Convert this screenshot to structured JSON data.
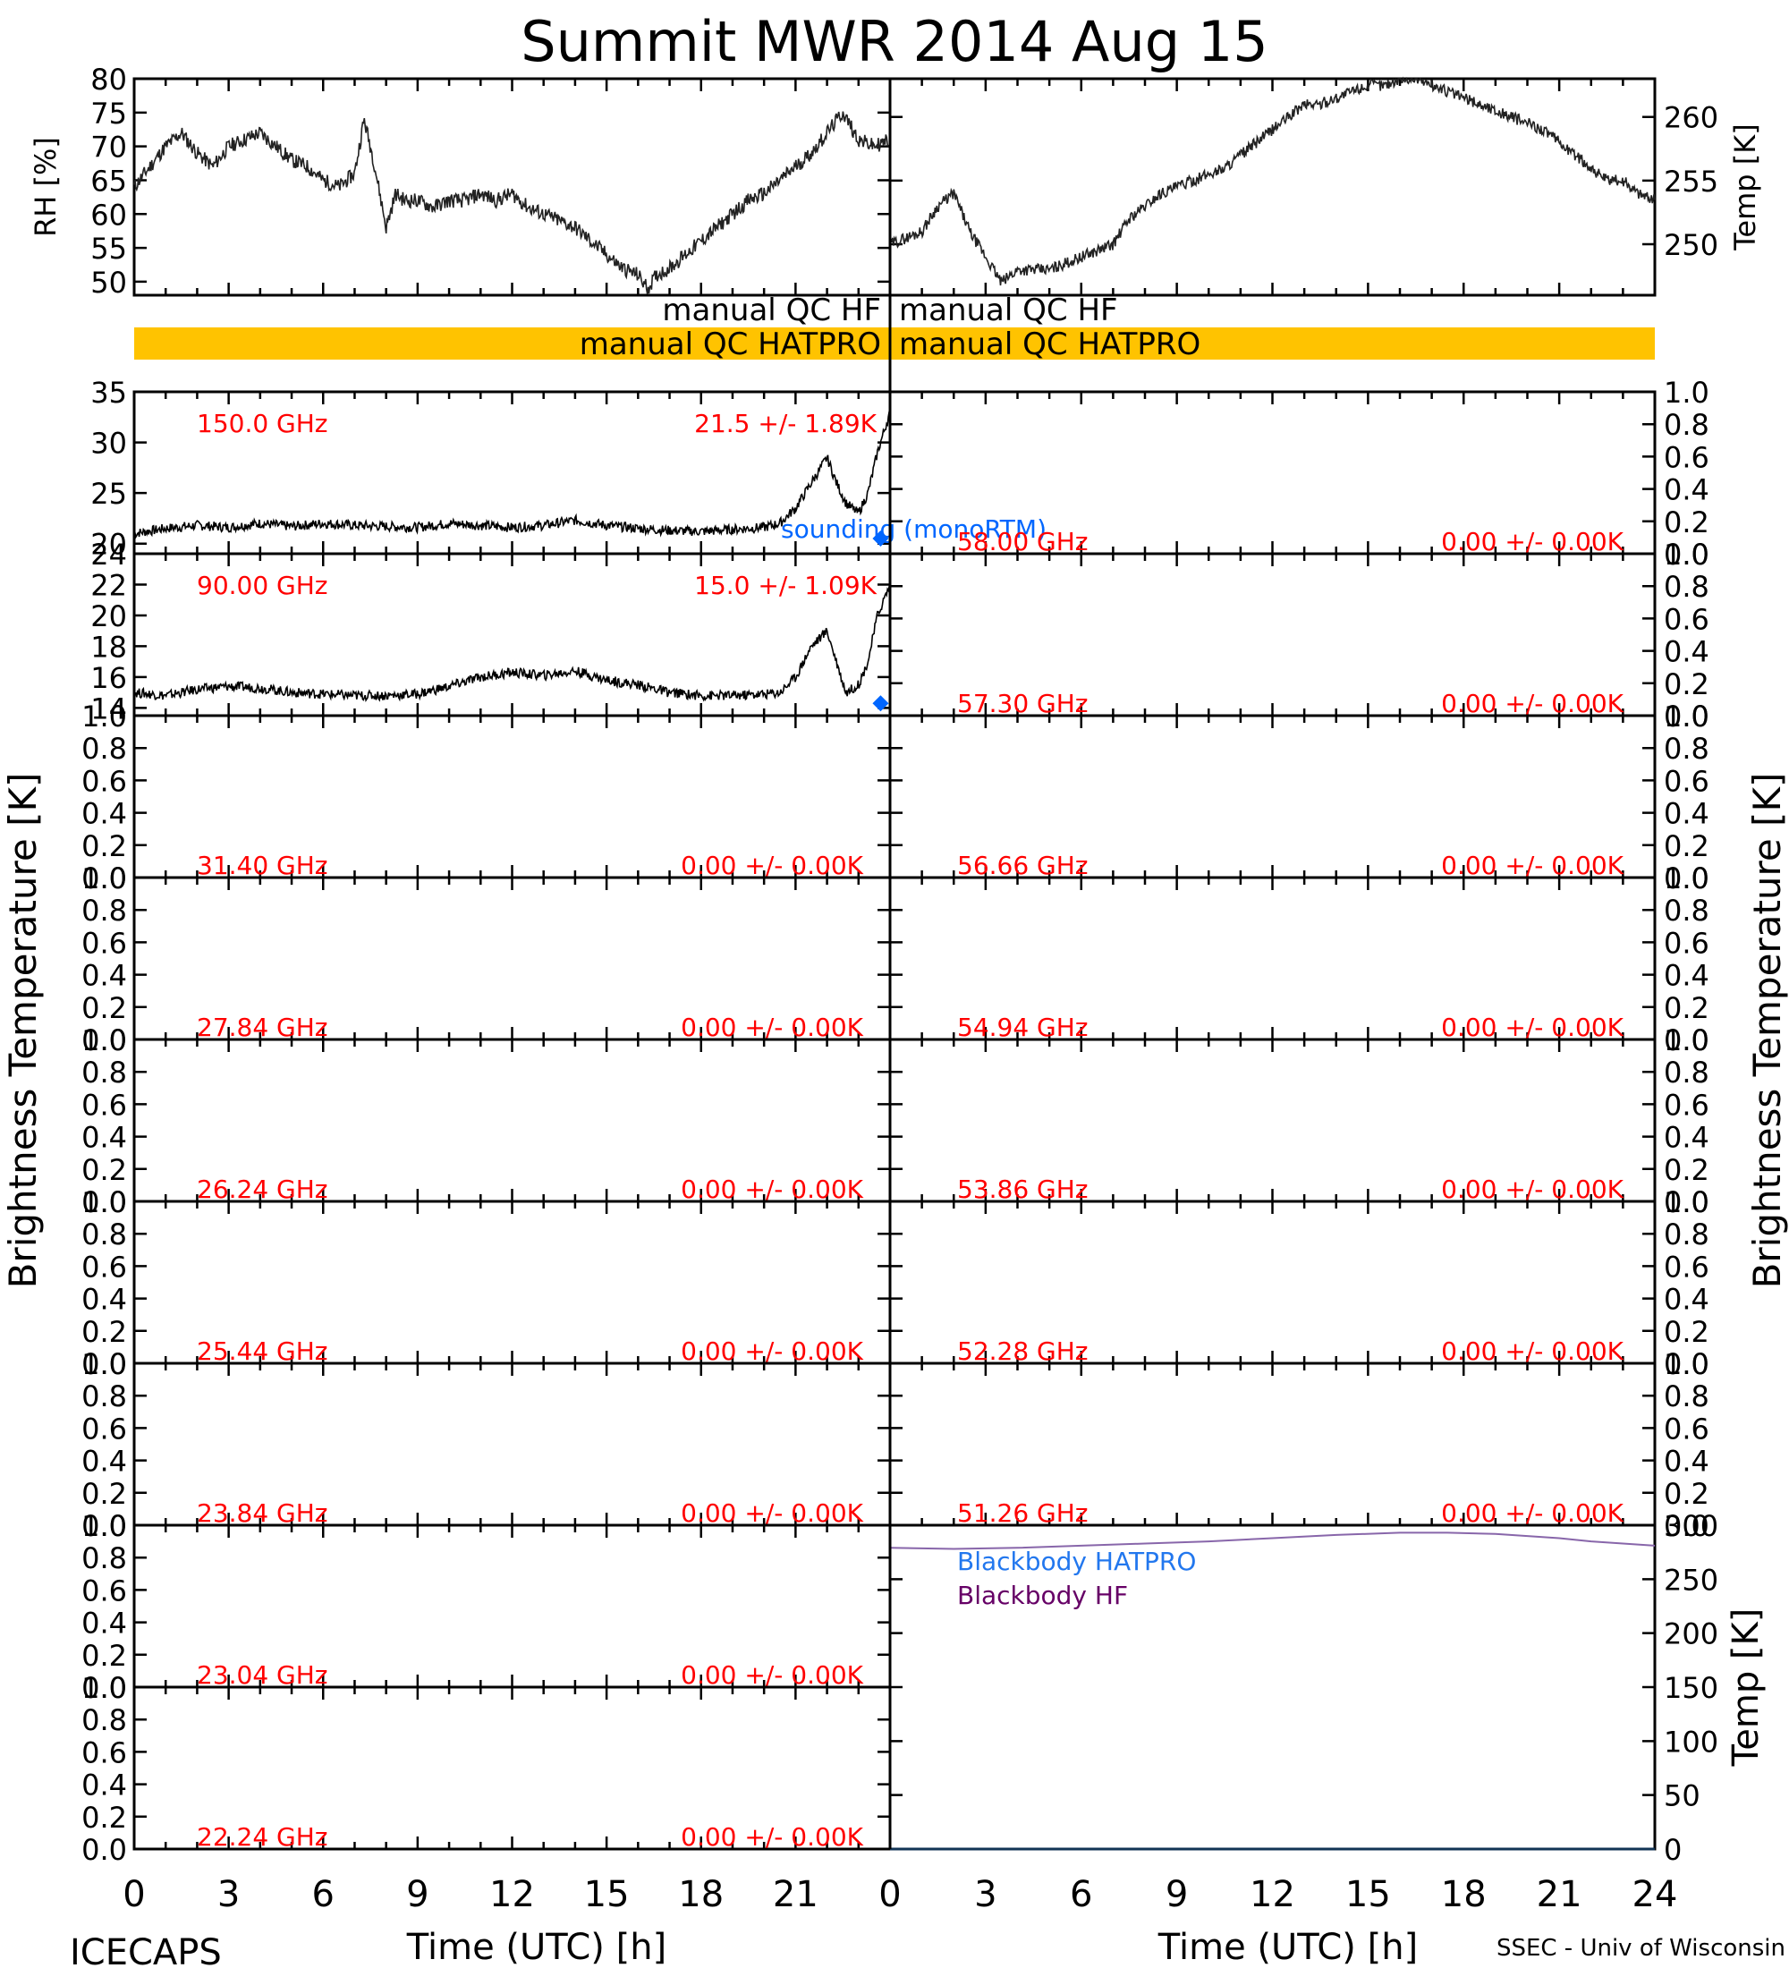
{
  "title": "Summit MWR 2014 Aug 15",
  "footer": {
    "left": "ICECAPS",
    "right": "SSEC - Univ of Wisconsin"
  },
  "left_axis_label": "Brightness Temperature [K]",
  "right_axis_label": "Brightness Temperature [K]",
  "xlabel": "Time (UTC) [h]",
  "xticks": [
    "0",
    "3",
    "6",
    "9",
    "12",
    "15",
    "18",
    "21",
    "24"
  ],
  "colors": {
    "qc_bar": "#ffc300",
    "label_red": "#ff0000",
    "sounding_blue": "#0066ff",
    "hatpro_blue": "#2277ee",
    "hf_purple": "#660066",
    "bb_line": "#8866aa"
  },
  "qc": {
    "hf": "manual  QC HF",
    "hatpro": "manual  QC HATPRO"
  },
  "chart_data": [
    {
      "type": "line",
      "panel": "rh",
      "ylabel": "RH [%]",
      "ylim": [
        48,
        80
      ],
      "yticks": [
        "50",
        "55",
        "60",
        "65",
        "70",
        "75",
        "80"
      ],
      "x": [
        0,
        0.5,
        1,
        1.5,
        2,
        2.5,
        3,
        3.5,
        4,
        4.5,
        5,
        5.5,
        6,
        6.5,
        7,
        7.3,
        7.6,
        8,
        8.3,
        8.6,
        9,
        9.5,
        10,
        10.5,
        11,
        11.5,
        12,
        12.5,
        13,
        13.5,
        14,
        14.5,
        15,
        15.5,
        16,
        16.3,
        16.6,
        17,
        17.5,
        18,
        18.5,
        19,
        19.5,
        20,
        20.5,
        21,
        21.5,
        22,
        22.5,
        23,
        23.5,
        24
      ],
      "series": [
        {
          "values": [
            64,
            67,
            70,
            72,
            69,
            67,
            70,
            71,
            72,
            70,
            68,
            67,
            65,
            64,
            66,
            74,
            68,
            58,
            63,
            62,
            62,
            61,
            62,
            62,
            63,
            62,
            63,
            61,
            60,
            59,
            58,
            56,
            54,
            52,
            51,
            49,
            51,
            52,
            54,
            56,
            58,
            60,
            62,
            63,
            65,
            67,
            69,
            72,
            75,
            71,
            70,
            71
          ]
        }
      ]
    },
    {
      "type": "line",
      "panel": "temp",
      "ylabel": "Temp [K]",
      "ylim": [
        246,
        263
      ],
      "yticks": [
        "250",
        "255",
        "260"
      ],
      "x": [
        0,
        0.5,
        1,
        1.5,
        2,
        2.5,
        3,
        3.5,
        4,
        4.5,
        5,
        5.5,
        6,
        6.5,
        7,
        7.5,
        8,
        8.5,
        9,
        9.5,
        10,
        10.5,
        11,
        11.5,
        12,
        12.5,
        13,
        13.5,
        14,
        14.5,
        15,
        15.5,
        16,
        16.5,
        17,
        17.5,
        18,
        18.5,
        19,
        19.5,
        20,
        20.5,
        21,
        21.5,
        22,
        22.5,
        23,
        23.5,
        24
      ],
      "series": [
        {
          "values": [
            250,
            250.5,
            251,
            253,
            254,
            251,
            249,
            247,
            248,
            248,
            248,
            248.5,
            249,
            249.5,
            250,
            252,
            253,
            254,
            254.5,
            255,
            255.5,
            256,
            257,
            258,
            259,
            260,
            261,
            261,
            261.5,
            262,
            262.5,
            262.5,
            263,
            263,
            262.5,
            262,
            261.5,
            261,
            260.5,
            260,
            259.5,
            259,
            258,
            257,
            256,
            255,
            255,
            254,
            253.5
          ]
        }
      ]
    },
    {
      "type": "line",
      "panel": "150.0 GHz",
      "side": "left",
      "channel_label": "150.0 GHz",
      "stat_label": "21.5 +/-  1.89K",
      "ylim": [
        19,
        35
      ],
      "yticks": [
        "20",
        "25",
        "30",
        "35"
      ],
      "annotation": "sounding (monoRTM)",
      "sounding_point": {
        "x": 23.7,
        "y": 20.5
      },
      "x": [
        0,
        1,
        2,
        3,
        4,
        5,
        6,
        7,
        8,
        9,
        10,
        11,
        12,
        13,
        14,
        15,
        16,
        17,
        18,
        19,
        20,
        20.5,
        21,
        21.5,
        22,
        22.3,
        22.6,
        23,
        23.3,
        23.6,
        24
      ],
      "series": [
        {
          "values": [
            21,
            21.5,
            21.8,
            21.6,
            22,
            21.7,
            22,
            21.8,
            21.7,
            21.6,
            22,
            21.8,
            21.6,
            21.8,
            22.3,
            21.8,
            21.5,
            21.3,
            21.2,
            21.4,
            21.6,
            22,
            23.5,
            26,
            28.5,
            26,
            24,
            23,
            25,
            29,
            33
          ]
        }
      ]
    },
    {
      "type": "line",
      "panel": "90.00 GHz",
      "side": "left",
      "channel_label": "90.00 GHz",
      "stat_label": "15.0 +/-  1.09K",
      "ylim": [
        13.5,
        24
      ],
      "yticks": [
        "14",
        "16",
        "18",
        "20",
        "22",
        "24"
      ],
      "sounding_point": {
        "x": 23.7,
        "y": 14.3
      },
      "x": [
        0,
        1,
        2,
        3,
        4,
        5,
        6,
        7,
        8,
        9,
        10,
        11,
        12,
        13,
        14,
        15,
        16,
        17,
        18,
        19,
        20,
        20.5,
        21,
        21.5,
        22,
        22.3,
        22.6,
        23,
        23.3,
        23.6,
        24
      ],
      "series": [
        {
          "values": [
            15,
            14.8,
            15.2,
            15.4,
            15.3,
            15,
            14.9,
            14.8,
            14.8,
            14.9,
            15.4,
            16,
            16.3,
            16.1,
            16.4,
            15.8,
            15.5,
            15,
            14.8,
            14.8,
            14.9,
            15,
            16,
            18,
            19,
            17,
            15,
            15.5,
            17,
            20,
            22
          ]
        }
      ]
    },
    {
      "type": "line",
      "panel": "31.40 GHz",
      "side": "left",
      "channel_label": "31.40 GHz",
      "stat_label": "0.00 +/-  0.00K",
      "ylim": [
        0,
        1
      ],
      "yticks": [
        "0.0",
        "0.2",
        "0.4",
        "0.6",
        "0.8",
        "1.0"
      ],
      "series": []
    },
    {
      "type": "line",
      "panel": "27.84 GHz",
      "side": "left",
      "channel_label": "27.84 GHz",
      "stat_label": "0.00 +/-  0.00K",
      "ylim": [
        0,
        1
      ],
      "yticks": [
        "0.0",
        "0.2",
        "0.4",
        "0.6",
        "0.8",
        "1.0"
      ],
      "series": []
    },
    {
      "type": "line",
      "panel": "26.24 GHz",
      "side": "left",
      "channel_label": "26.24 GHz",
      "stat_label": "0.00 +/-  0.00K",
      "ylim": [
        0,
        1
      ],
      "yticks": [
        "0.0",
        "0.2",
        "0.4",
        "0.6",
        "0.8",
        "1.0"
      ],
      "series": []
    },
    {
      "type": "line",
      "panel": "25.44 GHz",
      "side": "left",
      "channel_label": "25.44 GHz",
      "stat_label": "0.00 +/-  0.00K",
      "ylim": [
        0,
        1
      ],
      "yticks": [
        "0.0",
        "0.2",
        "0.4",
        "0.6",
        "0.8",
        "1.0"
      ],
      "series": []
    },
    {
      "type": "line",
      "panel": "23.84 GHz",
      "side": "left",
      "channel_label": "23.84 GHz",
      "stat_label": "0.00 +/-  0.00K",
      "ylim": [
        0,
        1
      ],
      "yticks": [
        "0.0",
        "0.2",
        "0.4",
        "0.6",
        "0.8",
        "1.0"
      ],
      "series": []
    },
    {
      "type": "line",
      "panel": "23.04 GHz",
      "side": "left",
      "channel_label": "23.04 GHz",
      "stat_label": "0.00 +/-  0.00K",
      "ylim": [
        0,
        1
      ],
      "yticks": [
        "0.0",
        "0.2",
        "0.4",
        "0.6",
        "0.8",
        "1.0"
      ],
      "series": []
    },
    {
      "type": "line",
      "panel": "22.24 GHz",
      "side": "left",
      "channel_label": "22.24 GHz",
      "stat_label": "0.00 +/-  0.00K",
      "ylim": [
        0,
        1
      ],
      "yticks": [
        "0.0",
        "0.2",
        "0.4",
        "0.6",
        "0.8",
        "1.0"
      ],
      "series": []
    },
    {
      "type": "line",
      "panel": "58.00 GHz",
      "side": "right",
      "channel_label": "58.00 GHz",
      "stat_label": "0.00 +/-  0.00K",
      "ylim": [
        0,
        1
      ],
      "yticks": [
        "0.0",
        "0.2",
        "0.4",
        "0.6",
        "0.8",
        "1.0"
      ],
      "series": []
    },
    {
      "type": "line",
      "panel": "57.30 GHz",
      "side": "right",
      "channel_label": "57.30 GHz",
      "stat_label": "0.00 +/-  0.00K",
      "ylim": [
        0,
        1
      ],
      "yticks": [
        "0.0",
        "0.2",
        "0.4",
        "0.6",
        "0.8",
        "1.0"
      ],
      "series": []
    },
    {
      "type": "line",
      "panel": "56.66 GHz",
      "side": "right",
      "channel_label": "56.66 GHz",
      "stat_label": "0.00 +/-  0.00K",
      "ylim": [
        0,
        1
      ],
      "yticks": [
        "0.0",
        "0.2",
        "0.4",
        "0.6",
        "0.8",
        "1.0"
      ],
      "series": []
    },
    {
      "type": "line",
      "panel": "54.94 GHz",
      "side": "right",
      "channel_label": "54.94 GHz",
      "stat_label": "0.00 +/-  0.00K",
      "ylim": [
        0,
        1
      ],
      "yticks": [
        "0.0",
        "0.2",
        "0.4",
        "0.6",
        "0.8",
        "1.0"
      ],
      "series": []
    },
    {
      "type": "line",
      "panel": "53.86 GHz",
      "side": "right",
      "channel_label": "53.86 GHz",
      "stat_label": "0.00 +/-  0.00K",
      "ylim": [
        0,
        1
      ],
      "yticks": [
        "0.0",
        "0.2",
        "0.4",
        "0.6",
        "0.8",
        "1.0"
      ],
      "series": []
    },
    {
      "type": "line",
      "panel": "52.28 GHz",
      "side": "right",
      "channel_label": "52.28 GHz",
      "stat_label": "0.00 +/-  0.00K",
      "ylim": [
        0,
        1
      ],
      "yticks": [
        "0.0",
        "0.2",
        "0.4",
        "0.6",
        "0.8",
        "1.0"
      ],
      "series": []
    },
    {
      "type": "line",
      "panel": "51.26 GHz",
      "side": "right",
      "channel_label": "51.26 GHz",
      "stat_label": "0.00 +/-  0.00K",
      "ylim": [
        0,
        1
      ],
      "yticks": [
        "0.0",
        "0.2",
        "0.4",
        "0.6",
        "0.8",
        "1.0"
      ],
      "series": []
    },
    {
      "type": "line",
      "panel": "blackbody",
      "side": "right",
      "ylabel": "Temp [K]",
      "ylim": [
        0,
        300
      ],
      "yticks": [
        "0",
        "50",
        "100",
        "150",
        "200",
        "250",
        "300"
      ],
      "x": [
        0,
        2,
        4,
        6,
        8,
        10,
        12,
        14,
        16,
        17.5,
        19,
        20,
        21,
        22,
        23,
        24
      ],
      "series": [
        {
          "name": "Blackbody HATPRO",
          "values": [
            0,
            0,
            0,
            0,
            0,
            0,
            0,
            0,
            0,
            0,
            0,
            0,
            0,
            0,
            0,
            0
          ]
        },
        {
          "name": "Blackbody HF",
          "values": [
            279,
            278,
            279,
            281,
            283,
            285,
            288,
            291,
            293,
            293,
            292,
            290,
            288,
            285,
            283,
            281
          ]
        }
      ]
    }
  ]
}
